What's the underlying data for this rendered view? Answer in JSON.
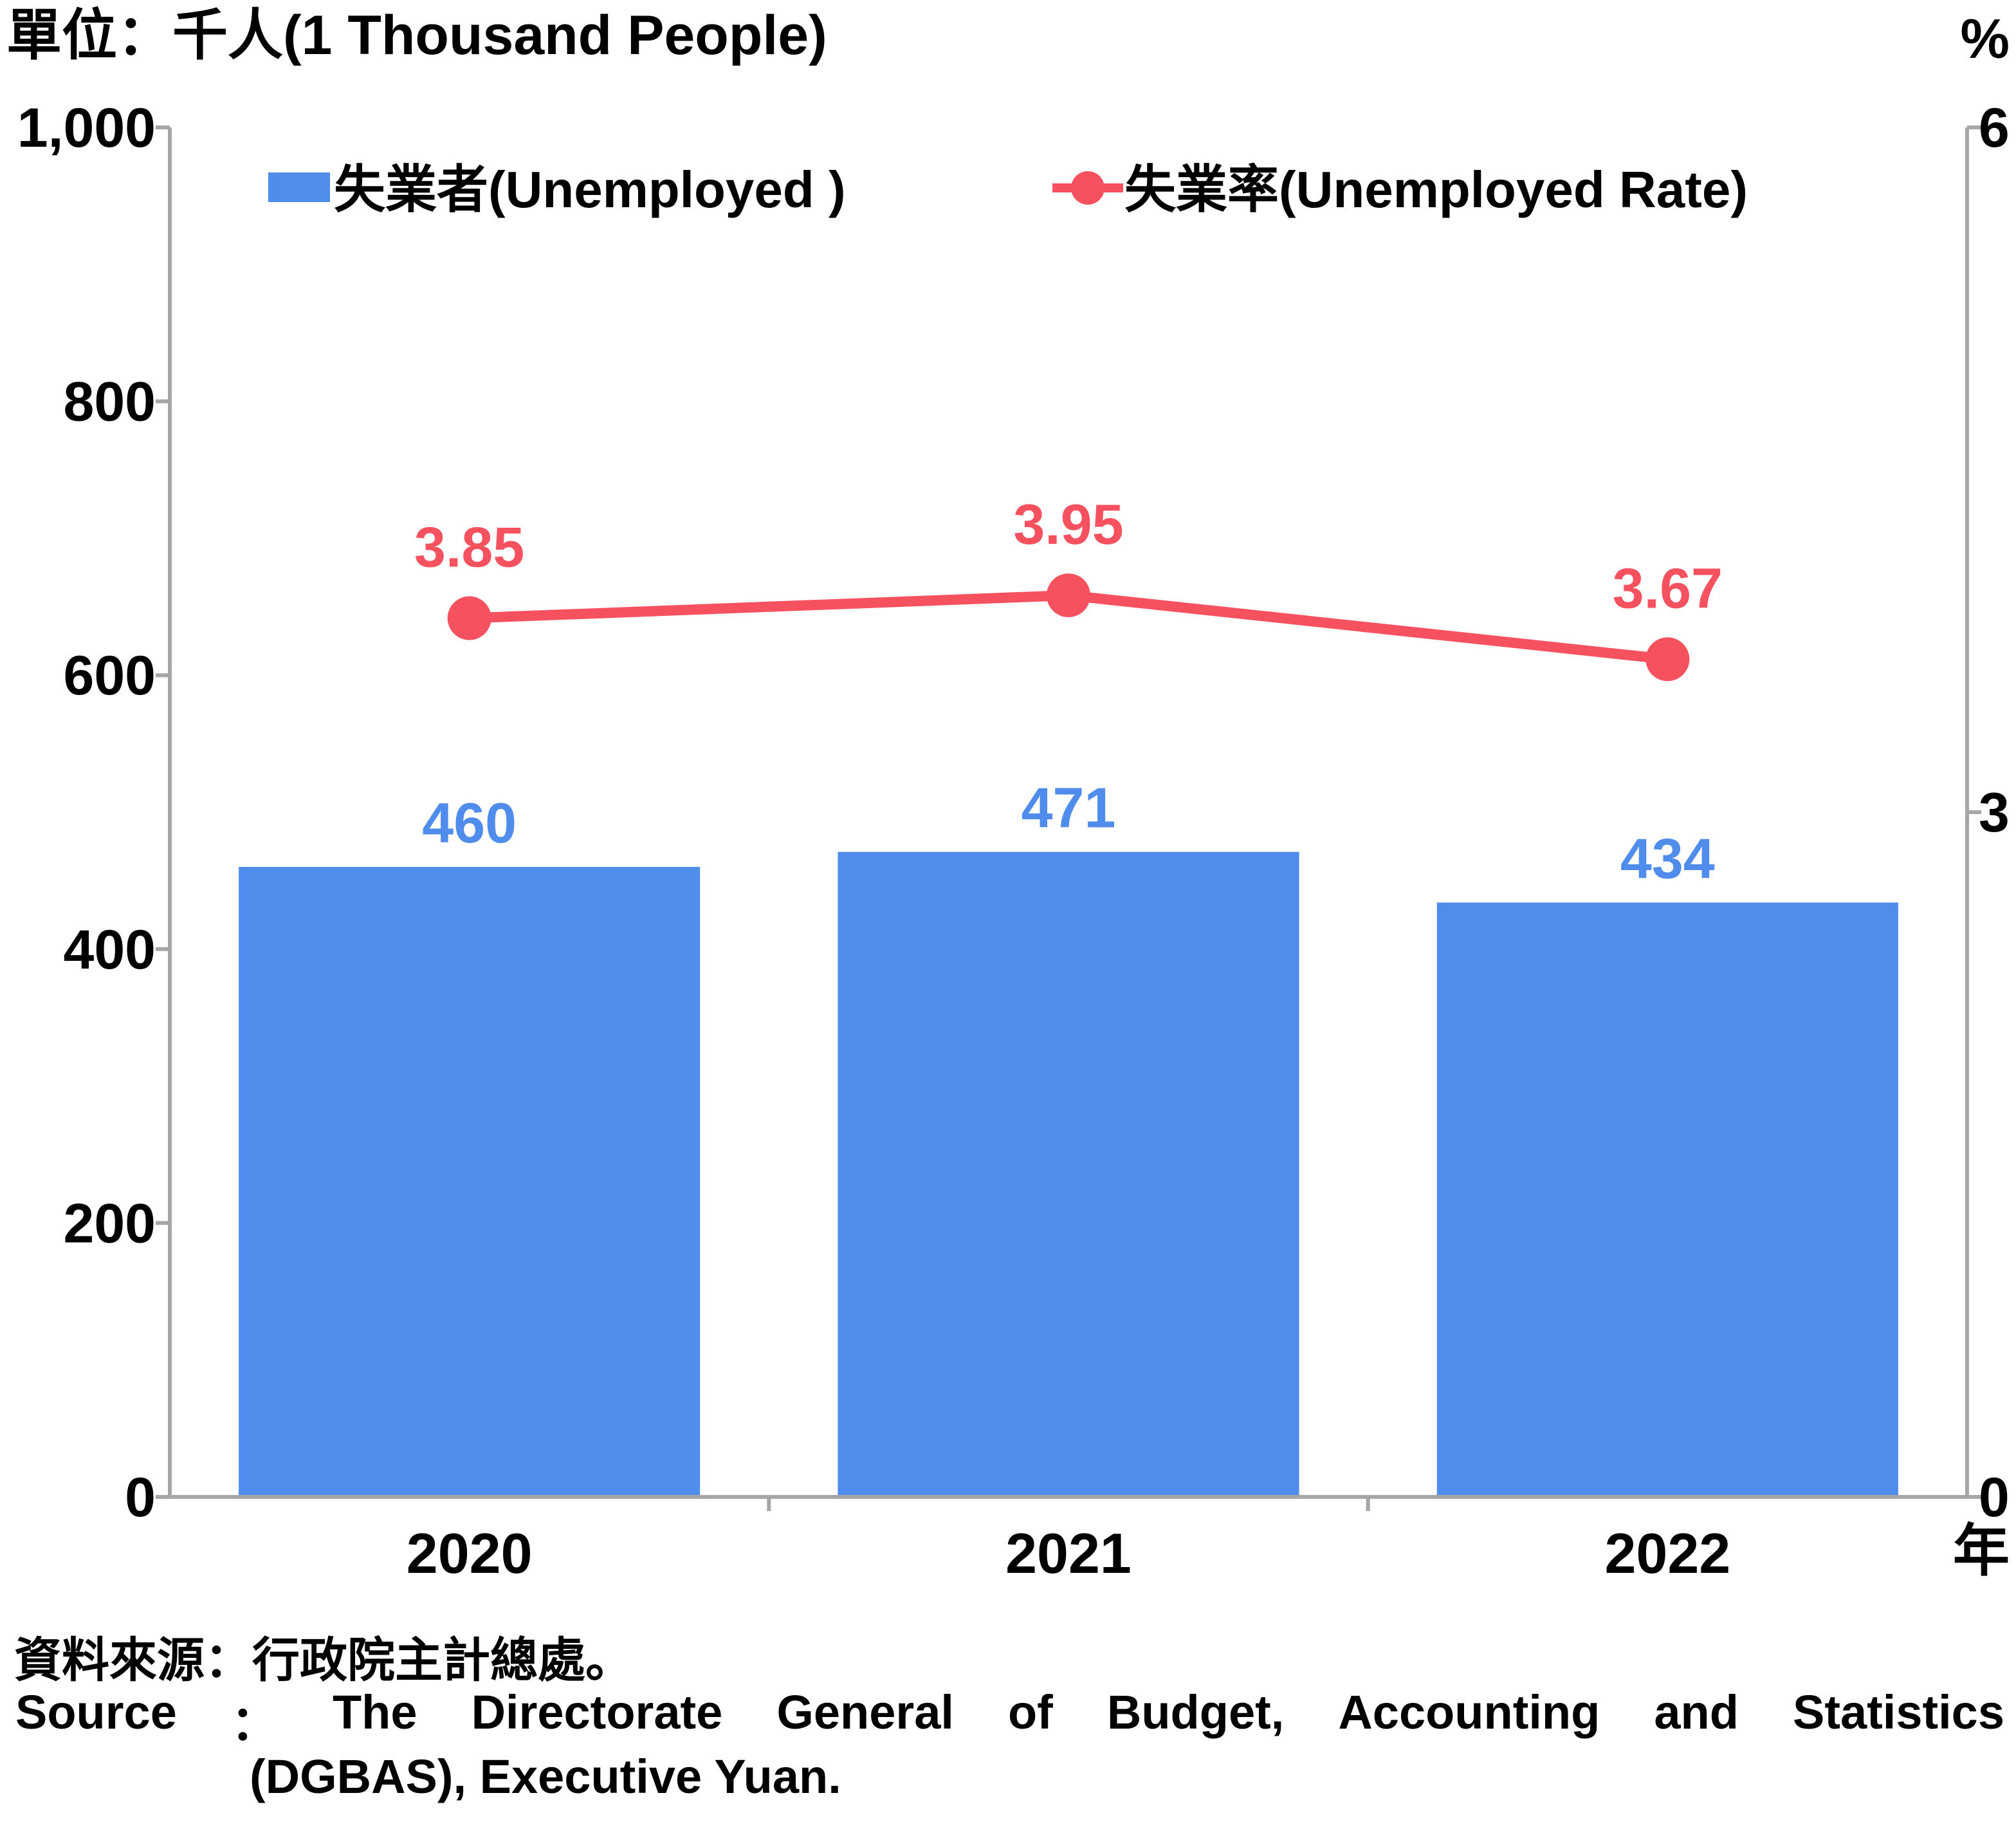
{
  "chart_data": {
    "type": "bar",
    "unit_left": "單位：千人(1 Thousand People)",
    "unit_right": "%",
    "x_unit": "年",
    "categories": [
      "2020",
      "2021",
      "2022"
    ],
    "series": [
      {
        "name": "失業者(Unemployed )",
        "type": "bar",
        "axis": "left",
        "values": [
          460,
          471,
          434
        ],
        "labels": [
          "460",
          "471",
          "434"
        ],
        "color": "#4f8ceb"
      },
      {
        "name": "失業率(Unemployed Rate)",
        "type": "line",
        "axis": "right",
        "values": [
          3.85,
          3.95,
          3.67
        ],
        "labels": [
          "3.85",
          "3.95",
          "3.67"
        ],
        "color": "#f5515f"
      }
    ],
    "y_left": {
      "min": 0,
      "max": 1000,
      "ticks": [
        "0",
        "200",
        "400",
        "600",
        "800",
        "1,000"
      ]
    },
    "y_right": {
      "min": 0,
      "max": 6,
      "ticks": [
        "0",
        "3",
        "6"
      ]
    },
    "grid": false,
    "legend_position": "top"
  },
  "source": {
    "zh": "資料來源：行政院主計總處。",
    "en_line1": [
      "Source",
      "：",
      "The",
      "Directorate",
      "General",
      "of",
      "Budget,",
      "Accounting",
      "and",
      "Statistics"
    ],
    "en_line2": "(DGBAS), Executive Yuan."
  }
}
